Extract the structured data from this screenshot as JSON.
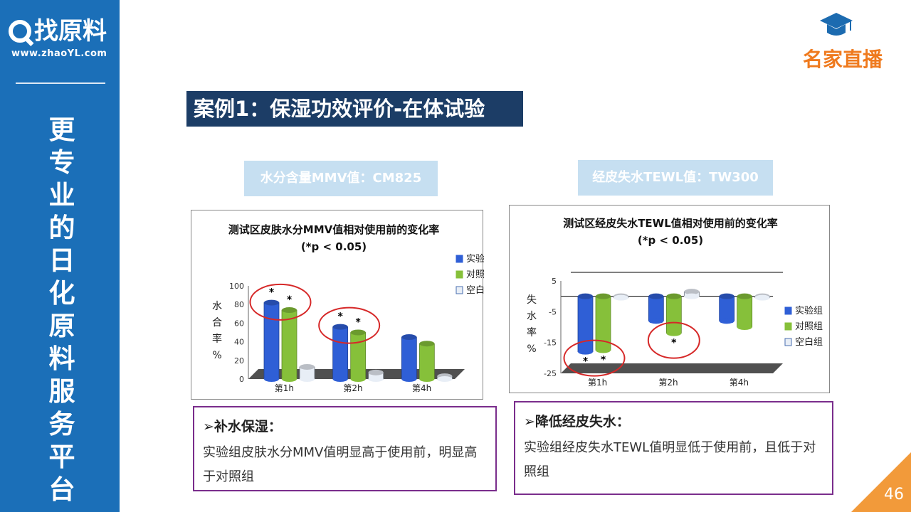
{
  "sidebar": {
    "logo_text": "找原料",
    "logo_url": "www.zhaoYL.com",
    "slogan": "更专业的日化原料服务平台"
  },
  "brand": {
    "text": "名家直播",
    "icon": "graduation-cap-icon"
  },
  "slide": {
    "title": "案例1：保湿功效评价-在体试验",
    "page_number": "46"
  },
  "sources": {
    "left": "水分含量MMV值：CM825",
    "right": "经皮失水TEWL值：TW300"
  },
  "notes": {
    "left": {
      "marker": "➢",
      "heading": "补水保湿：",
      "body": "实验组皮肤水分MMV值明显高于使用前，明显高于对照组"
    },
    "right": {
      "marker": "➢",
      "heading": "降低经皮失水：",
      "body": "实验组经皮失水TEWL值明显低于使用前，且低于对照组"
    }
  },
  "colors": {
    "sidebar": "#1b6fb8",
    "title_bg": "#1c3d66",
    "accent": "#ef7a1e",
    "source_bg": "#c6dff1",
    "note_border": "#7a2d8c",
    "series_blue": "#2f5fd6",
    "series_green": "#86c03a",
    "series_white": "#e8eef6",
    "highlight": "#d62828"
  },
  "chart_data": [
    {
      "type": "bar",
      "title": "测试区皮肤水分MMV值相对使用前的变化率",
      "subtitle": "(*p < 0.05)",
      "ylabel": "水合率%",
      "ylim": [
        0,
        100
      ],
      "yticks": [
        "0",
        "20",
        "40",
        "60",
        "80",
        "100"
      ],
      "categories": [
        "第1h",
        "第2h",
        "第4h"
      ],
      "series": [
        {
          "name": "实验组",
          "color": "#2f5fd6",
          "values": [
            82,
            56,
            45
          ]
        },
        {
          "name": "对照组",
          "color": "#86c03a",
          "values": [
            74,
            50,
            38
          ]
        },
        {
          "name": "空白组",
          "color": "#e8eef6",
          "values": [
            13,
            7,
            3
          ]
        }
      ],
      "significance": [
        {
          "category": "第1h",
          "series": [
            "实验组",
            "对照组"
          ],
          "mark": "*"
        },
        {
          "category": "第2h",
          "series": [
            "实验组",
            "对照组"
          ],
          "mark": "*"
        }
      ],
      "legend_position": "right"
    },
    {
      "type": "bar",
      "title": "测试区经皮失水TEWL值相对使用前的变化率",
      "subtitle": "(*p < 0.05)",
      "ylabel": "失水率%",
      "ylim": [
        -25,
        5
      ],
      "yticks": [
        "5",
        "-5",
        "-15",
        "-25"
      ],
      "categories": [
        "第1h",
        "第2h",
        "第4h"
      ],
      "series": [
        {
          "name": "实验组",
          "color": "#2f5fd6",
          "values": [
            -18,
            -8,
            -8
          ]
        },
        {
          "name": "对照组",
          "color": "#86c03a",
          "values": [
            -17.5,
            -12,
            -10
          ]
        },
        {
          "name": "空白组",
          "color": "#e8eef6",
          "values": [
            -0.3,
            1.5,
            -0.3
          ]
        }
      ],
      "significance": [
        {
          "category": "第1h",
          "series": [
            "实验组",
            "对照组"
          ],
          "mark": "*"
        },
        {
          "category": "第2h",
          "series": [
            "对照组"
          ],
          "mark": "*"
        }
      ],
      "legend_position": "right"
    }
  ]
}
